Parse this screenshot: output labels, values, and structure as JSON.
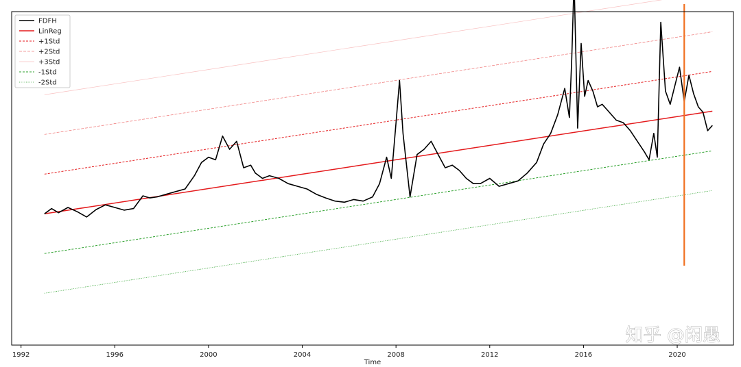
{
  "watermark": "知乎 @闲愚",
  "chart_data": {
    "type": "line",
    "title": "",
    "xlabel": "Time",
    "ylabel": "",
    "xlim": [
      1991.6,
      2022.4
    ],
    "ylim": [
      -2.5,
      3.8
    ],
    "x_ticks": [
      1992,
      1996,
      2000,
      2004,
      2008,
      2012,
      2016,
      2020
    ],
    "grid": false,
    "legend_position": "top-left",
    "legend": [
      "FDFH",
      "LinReg",
      "+1Std",
      "+2Std",
      "+3Std",
      "-1Std",
      "-2Std"
    ],
    "colors": {
      "FDFH": "#000000",
      "LinReg": "#e41a1c",
      "+1Std": "#e41a1c",
      "+2Std": "#f08080",
      "+3Std": "#f8c0c0",
      "-1Std": "#2ca02c",
      "-2Std": "#2ca02c",
      "vline": "#f07020"
    },
    "regression": {
      "x": [
        1993.0,
        2021.5
      ],
      "y": [
        -0.02,
        1.92
      ]
    },
    "std": 0.75,
    "vertical_line": {
      "x": 2020.3,
      "y": [
        -1.0,
        4.2
      ]
    },
    "series": [
      {
        "name": "FDFH",
        "x": [
          1993.0,
          1993.3,
          1993.6,
          1994.0,
          1994.4,
          1994.8,
          1995.2,
          1995.6,
          1996.0,
          1996.4,
          1996.8,
          1997.2,
          1997.5,
          1997.8,
          1998.2,
          1998.6,
          1999.0,
          1999.4,
          1999.7,
          2000.0,
          2000.3,
          2000.6,
          2000.9,
          2001.2,
          2001.5,
          2001.8,
          2002.0,
          2002.3,
          2002.6,
          2003.0,
          2003.4,
          2003.8,
          2004.2,
          2004.6,
          2005.0,
          2005.4,
          2005.8,
          2006.2,
          2006.6,
          2007.0,
          2007.3,
          2007.6,
          2007.8,
          2008.0,
          2008.15,
          2008.3,
          2008.6,
          2008.9,
          2009.2,
          2009.5,
          2009.8,
          2010.1,
          2010.4,
          2010.7,
          2011.0,
          2011.3,
          2011.6,
          2012.0,
          2012.4,
          2012.8,
          2013.2,
          2013.6,
          2014.0,
          2014.3,
          2014.6,
          2014.9,
          2015.2,
          2015.4,
          2015.5,
          2015.6,
          2015.75,
          2015.9,
          2016.05,
          2016.2,
          2016.4,
          2016.6,
          2016.8,
          2017.1,
          2017.4,
          2017.7,
          2018.0,
          2018.3,
          2018.6,
          2018.8,
          2019.0,
          2019.15,
          2019.3,
          2019.5,
          2019.7,
          2019.9,
          2020.1,
          2020.3,
          2020.5,
          2020.7,
          2020.9,
          2021.1,
          2021.3,
          2021.5
        ],
        "values": [
          -0.02,
          0.08,
          0.0,
          0.1,
          0.02,
          -0.08,
          0.06,
          0.15,
          0.1,
          0.05,
          0.08,
          0.32,
          0.28,
          0.3,
          0.35,
          0.4,
          0.45,
          0.7,
          0.95,
          1.05,
          1.0,
          1.45,
          1.2,
          1.35,
          0.85,
          0.9,
          0.75,
          0.65,
          0.7,
          0.65,
          0.55,
          0.5,
          0.45,
          0.35,
          0.28,
          0.22,
          0.2,
          0.25,
          0.22,
          0.3,
          0.55,
          1.05,
          0.65,
          1.7,
          2.5,
          1.5,
          0.3,
          1.1,
          1.2,
          1.35,
          1.1,
          0.85,
          0.9,
          0.8,
          0.65,
          0.55,
          0.55,
          0.65,
          0.5,
          0.55,
          0.6,
          0.75,
          0.95,
          1.3,
          1.5,
          1.85,
          2.35,
          1.8,
          2.9,
          4.4,
          1.6,
          3.2,
          2.2,
          2.5,
          2.3,
          2.0,
          2.05,
          1.9,
          1.75,
          1.7,
          1.55,
          1.35,
          1.15,
          1.0,
          1.5,
          1.05,
          3.6,
          2.3,
          2.05,
          2.4,
          2.75,
          2.1,
          2.6,
          2.25,
          2.0,
          1.9,
          1.55,
          1.65
        ]
      }
    ]
  }
}
